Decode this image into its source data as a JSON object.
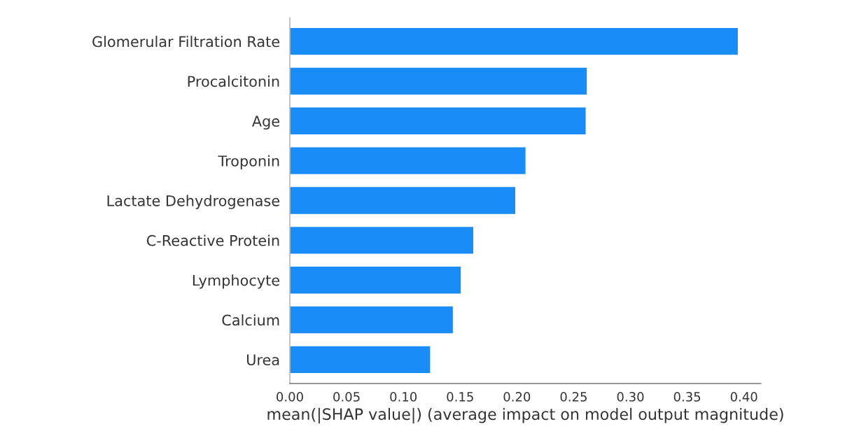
{
  "chart_data": {
    "type": "bar",
    "orientation": "horizontal",
    "xlabel": "mean(|SHAP value|) (average impact on model output magnitude)",
    "categories": [
      "Glomerular Filtration Rate",
      "Procalcitonin",
      "Age",
      "Troponin",
      "Lactate Dehydrogenase",
      "C-Reactive Protein",
      "Lymphocyte",
      "Calcium",
      "Urea"
    ],
    "values": [
      0.395,
      0.262,
      0.261,
      0.208,
      0.199,
      0.162,
      0.151,
      0.144,
      0.124
    ],
    "color": "#1a8cf8",
    "xlim": [
      0,
      0.415
    ],
    "xticks": [
      {
        "value": 0,
        "label": "0.00"
      },
      {
        "value": 0.05,
        "label": "0.05"
      },
      {
        "value": 0.1,
        "label": "0.10"
      },
      {
        "value": 0.15,
        "label": "0.15"
      },
      {
        "value": 0.2,
        "label": "0.20"
      },
      {
        "value": 0.25,
        "label": "0.25"
      },
      {
        "value": 0.3,
        "label": "0.30"
      },
      {
        "value": 0.35,
        "label": "0.35"
      },
      {
        "value": 0.4,
        "label": "0.40"
      }
    ],
    "grid": false,
    "legend": false
  }
}
